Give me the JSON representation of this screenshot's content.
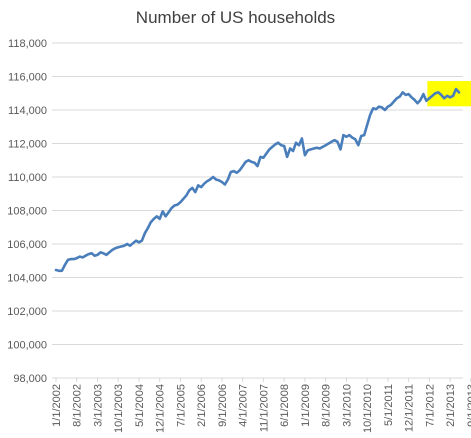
{
  "chart_data": {
    "type": "line",
    "title": "Number of US households",
    "xlabel": "",
    "ylabel": "",
    "ylim": [
      98000,
      118000
    ],
    "y_ticks": [
      "98,000",
      "100,000",
      "102,000",
      "104,000",
      "106,000",
      "108,000",
      "110,000",
      "112,000",
      "114,000",
      "116,000",
      "118,000"
    ],
    "y_tick_values": [
      98000,
      100000,
      102000,
      104000,
      106000,
      108000,
      110000,
      112000,
      114000,
      116000,
      118000
    ],
    "x_tick_labels": [
      "1/1/2002",
      "8/1/2002",
      "3/1/2003",
      "10/1/2003",
      "5/1/2004",
      "12/1/2004",
      "7/1/2005",
      "2/1/2006",
      "9/1/2006",
      "4/1/2007",
      "11/1/2007",
      "6/1/2008",
      "1/1/2009",
      "8/1/2009",
      "3/1/2010",
      "10/1/2010",
      "5/1/2011",
      "12/1/2011",
      "7/1/2012",
      "2/1/2013",
      "9/1/2013",
      "4/1/2014"
    ],
    "x_tick_months": [
      0,
      7,
      14,
      21,
      28,
      35,
      42,
      49,
      56,
      63,
      70,
      77,
      84,
      91,
      98,
      105,
      112,
      119,
      126,
      133,
      140,
      147
    ],
    "grid": "horizontal",
    "highlight": {
      "from_month": 126,
      "to_month": 151,
      "color": "#ffff00"
    },
    "series": [
      {
        "color": "#4a7ebb",
        "start": "1/1/2002",
        "frequency": "monthly",
        "values": [
          104450,
          104400,
          104400,
          104750,
          105050,
          105100,
          105100,
          105150,
          105250,
          105200,
          105300,
          105400,
          105450,
          105300,
          105350,
          105500,
          105450,
          105350,
          105500,
          105650,
          105750,
          105800,
          105850,
          105900,
          106000,
          105900,
          106050,
          106200,
          106100,
          106200,
          106650,
          106950,
          107300,
          107500,
          107650,
          107500,
          107950,
          107650,
          107900,
          108150,
          108300,
          108350,
          108500,
          108700,
          108900,
          109200,
          109350,
          109100,
          109500,
          109400,
          109600,
          109750,
          109850,
          110000,
          109850,
          109800,
          109700,
          109550,
          109850,
          110300,
          110350,
          110250,
          110400,
          110650,
          110900,
          111000,
          110900,
          110850,
          110650,
          111200,
          111150,
          111400,
          111650,
          111800,
          111950,
          112050,
          111900,
          111850,
          111200,
          111700,
          111550,
          112050,
          111900,
          112300,
          111300,
          111600,
          111650,
          111700,
          111750,
          111700,
          111800,
          111900,
          112000,
          112100,
          112200,
          112100,
          111650,
          112500,
          112400,
          112500,
          112350,
          112250,
          111900,
          112450,
          112500,
          113100,
          113700,
          114100,
          114050,
          114200,
          114150,
          114000,
          114200,
          114300,
          114500,
          114700,
          114800,
          115050,
          114900,
          114950,
          114750,
          114600,
          114400,
          114600,
          114950,
          114550,
          114700,
          114850,
          115000,
          115050,
          114900,
          114700,
          114850,
          114750,
          114850,
          115250,
          115050
        ]
      }
    ]
  }
}
